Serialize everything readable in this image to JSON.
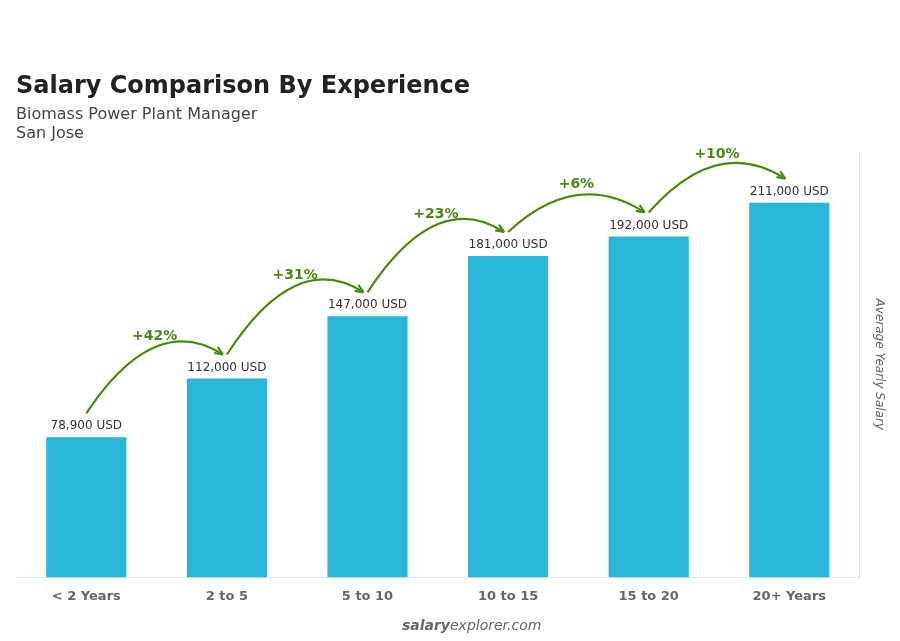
{
  "chart_data": {
    "type": "bar",
    "title": "Salary Comparison By Experience",
    "subtitle": [
      "Biomass Power Plant Manager",
      "San Jose"
    ],
    "categories": [
      "< 2 Years",
      "2 to 5",
      "5 to 10",
      "10 to 15",
      "15 to 20",
      "20+ Years"
    ],
    "values": [
      78900,
      112000,
      147000,
      181000,
      192000,
      211000
    ],
    "value_labels": [
      "78,900 USD",
      "112,000 USD",
      "147,000 USD",
      "181,000 USD",
      "192,000 USD",
      "211,000 USD"
    ],
    "data_labels": true,
    "color": "#29b6d8",
    "ylabel": "Average Yearly Salary",
    "ylim": [
      0,
      240000
    ],
    "annotations": [
      "+42%",
      "+31%",
      "+23%",
      "+6%",
      "+10%"
    ],
    "footer": [
      "salary",
      "explorer.com"
    ],
    "grid": false,
    "tick_labels": "x"
  }
}
